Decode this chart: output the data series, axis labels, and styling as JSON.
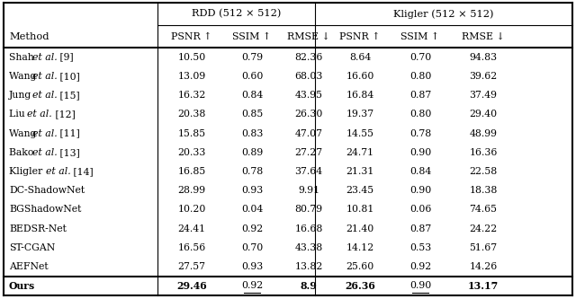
{
  "methods_normal": [
    "Shah",
    "Wang",
    "Jung",
    "Liu",
    "Wang",
    "Bako",
    "Kligler",
    "DC-ShadowNet",
    "BGShadowNet",
    "BEDSR-Net",
    "ST-CGAN",
    "AEFNet",
    "Ours"
  ],
  "methods_italic": [
    "et al.",
    "et al.",
    "et al.",
    "et al.",
    "et al.",
    "et al.",
    "et al.",
    "",
    "",
    "",
    "",
    "",
    ""
  ],
  "methods_suffix": [
    " [9]",
    " [10]",
    " [15]",
    " [12]",
    " [11]",
    " [13]",
    " et al. [14]",
    "",
    "",
    "",
    "",
    "",
    ""
  ],
  "methods_italic2": [
    "",
    "",
    "",
    "",
    "",
    "",
    "et al.",
    "",
    "",
    "",
    "",
    "",
    ""
  ],
  "rdd_psnr": [
    "10.50",
    "13.09",
    "16.32",
    "20.38",
    "15.85",
    "20.33",
    "16.85",
    "28.99",
    "10.20",
    "24.41",
    "16.56",
    "27.57",
    "29.46"
  ],
  "rdd_ssim": [
    "0.79",
    "0.60",
    "0.84",
    "0.85",
    "0.83",
    "0.89",
    "0.78",
    "0.93",
    "0.04",
    "0.92",
    "0.70",
    "0.93",
    "0.92"
  ],
  "rdd_rmse": [
    "82.36",
    "68.03",
    "43.95",
    "26.30",
    "47.07",
    "27.27",
    "37.64",
    "9.91",
    "80.79",
    "16.68",
    "43.38",
    "13.82",
    "8.9"
  ],
  "kli_psnr": [
    "8.64",
    "16.60",
    "16.84",
    "19.37",
    "14.55",
    "24.71",
    "21.31",
    "23.45",
    "10.81",
    "21.40",
    "14.12",
    "25.60",
    "26.36"
  ],
  "kli_ssim": [
    "0.70",
    "0.80",
    "0.87",
    "0.80",
    "0.78",
    "0.90",
    "0.84",
    "0.90",
    "0.06",
    "0.87",
    "0.53",
    "0.92",
    "0.90"
  ],
  "kli_rmse": [
    "94.83",
    "39.62",
    "37.49",
    "29.40",
    "48.99",
    "16.36",
    "22.58",
    "18.38",
    "74.65",
    "24.22",
    "51.67",
    "14.26",
    "13.17"
  ],
  "bold_indices_rdd_psnr": [
    12
  ],
  "bold_indices_rdd_rmse": [
    12
  ],
  "bold_indices_kli_psnr": [
    12
  ],
  "bold_indices_kli_rmse": [
    12
  ],
  "underline_indices_rdd_ssim": [
    12
  ],
  "underline_indices_kli_ssim": [
    12
  ],
  "header1_rdd": "RDD (512 × 512)",
  "header1_kli": "Kligler (512 × 512)",
  "header2": [
    "PSNR ↑",
    "SSIM ↑",
    "RMSE ↓",
    "PSNR ↑",
    "SSIM ↑",
    "RMSE ↓"
  ],
  "col_method": "Method",
  "bg_color": "#ffffff",
  "fontsize": 7.8,
  "header_fontsize": 8.2
}
